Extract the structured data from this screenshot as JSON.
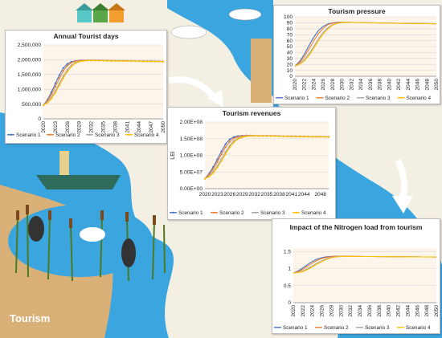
{
  "illustration": {
    "label": "Tourism",
    "colors": {
      "river": "#3ba5e0",
      "sand": "#d9b077",
      "land": "#f4efe3",
      "reed": "#4b7a22",
      "text": "#ffffff"
    }
  },
  "chart_data": [
    {
      "id": "p1",
      "type": "line",
      "title": "Annual Tourist days",
      "x": [
        2020,
        2021,
        2022,
        2023,
        2024,
        2025,
        2026,
        2027,
        2028,
        2029,
        2030,
        2031,
        2032,
        2033,
        2034,
        2035,
        2036,
        2037,
        2038,
        2039,
        2040,
        2041,
        2042,
        2043,
        2044,
        2045,
        2046,
        2047,
        2048,
        2049,
        2050
      ],
      "x_ticks": [
        "2020",
        "2023",
        "2026",
        "2029",
        "2032",
        "2035",
        "2038",
        "2041",
        "2044",
        "2047",
        "2050"
      ],
      "y_ticks": [
        "0",
        "500,000",
        "1,000,000",
        "1,500,000",
        "2,000,000",
        "2,500,000"
      ],
      "ylim": [
        0,
        2500000
      ],
      "series": [
        {
          "name": "Scenario 1",
          "color": "#4472c4",
          "marker": "circle",
          "values": [
            460000,
            640000,
            900000,
            1200000,
            1480000,
            1720000,
            1860000,
            1930000,
            1960000,
            1975000,
            1980000,
            1982000,
            1980000,
            1978000,
            1976000,
            1974000,
            1972000,
            1970000,
            1968000,
            1966000,
            1964000,
            1962000,
            1960000,
            1958000,
            1956000,
            1954000,
            1952000,
            1950000,
            1948000,
            1946000,
            1944000
          ]
        },
        {
          "name": "Scenario 2",
          "color": "#ed7d31",
          "marker": "circle",
          "values": [
            460000,
            600000,
            820000,
            1090000,
            1370000,
            1620000,
            1800000,
            1900000,
            1950000,
            1970000,
            1978000,
            1980000,
            1979000,
            1977000,
            1975000,
            1973000,
            1971000,
            1969000,
            1967000,
            1965000,
            1963000,
            1961000,
            1959000,
            1957000,
            1955000,
            1953000,
            1951000,
            1949000,
            1947000,
            1945000,
            1943000
          ]
        },
        {
          "name": "Scenario 3",
          "color": "#a5a5a5",
          "marker": "circle",
          "values": [
            460000,
            560000,
            720000,
            940000,
            1200000,
            1450000,
            1660000,
            1810000,
            1900000,
            1945000,
            1965000,
            1972000,
            1974000,
            1973000,
            1971000,
            1969000,
            1967000,
            1965000,
            1963000,
            1961000,
            1959000,
            1957000,
            1955000,
            1953000,
            1951000,
            1949000,
            1947000,
            1945000,
            1943000,
            1941000,
            1939000
          ]
        },
        {
          "name": "Scenario 4",
          "color": "#ffc000",
          "marker": "circle",
          "values": [
            460000,
            540000,
            680000,
            880000,
            1130000,
            1380000,
            1600000,
            1770000,
            1880000,
            1935000,
            1960000,
            1970000,
            1972000,
            1971000,
            1969000,
            1967000,
            1965000,
            1963000,
            1961000,
            1959000,
            1957000,
            1955000,
            1953000,
            1951000,
            1949000,
            1947000,
            1945000,
            1943000,
            1941000,
            1939000,
            1937000
          ]
        }
      ],
      "grid": true,
      "legend": "bottom"
    },
    {
      "id": "p2",
      "type": "line",
      "title": "Tourism pressure",
      "x": [
        2020,
        2021,
        2022,
        2023,
        2024,
        2025,
        2026,
        2027,
        2028,
        2029,
        2030,
        2031,
        2032,
        2033,
        2034,
        2035,
        2036,
        2037,
        2038,
        2039,
        2040,
        2041,
        2042,
        2043,
        2044,
        2045,
        2046,
        2047,
        2048,
        2049,
        2050
      ],
      "x_ticks": [
        "2020",
        "2022",
        "2024",
        "2026",
        "2028",
        "2030",
        "2032",
        "2034",
        "2036",
        "2038",
        "2040",
        "2042",
        "2044",
        "2046",
        "2048",
        "2050"
      ],
      "y_ticks": [
        "0",
        "10",
        "20",
        "30",
        "40",
        "50",
        "60",
        "70",
        "80",
        "90",
        "100"
      ],
      "ylim": [
        0,
        100
      ],
      "series": [
        {
          "name": "Scenario 1",
          "color": "#4472c4",
          "marker": "none",
          "values": [
            17,
            25,
            37,
            52,
            66,
            77,
            84,
            88,
            90,
            91,
            91,
            91,
            90.7,
            90.5,
            90.3,
            90.1,
            90,
            89.8,
            89.7,
            89.5,
            89.4,
            89.3,
            89.2,
            89.1,
            89,
            88.9,
            88.8,
            88.7,
            88.6,
            88.5,
            88.4
          ]
        },
        {
          "name": "Scenario 2",
          "color": "#ed7d31",
          "marker": "none",
          "values": [
            17,
            23,
            33,
            46,
            60,
            72,
            81,
            87,
            89.5,
            90.5,
            91,
            91,
            90.7,
            90.5,
            90.3,
            90.1,
            90,
            89.8,
            89.7,
            89.5,
            89.4,
            89.3,
            89.2,
            89.1,
            89,
            88.9,
            88.8,
            88.7,
            88.6,
            88.5,
            88.4
          ]
        },
        {
          "name": "Scenario 3",
          "color": "#a5a5a5",
          "marker": "none",
          "values": [
            17,
            21,
            28,
            38,
            50,
            63,
            74,
            82,
            87,
            89.5,
            90.5,
            90.8,
            90.7,
            90.5,
            90.3,
            90.1,
            90,
            89.8,
            89.7,
            89.5,
            89.4,
            89.3,
            89.2,
            89.1,
            89,
            88.9,
            88.8,
            88.7,
            88.6,
            88.5,
            88.4
          ]
        },
        {
          "name": "Scenario 4",
          "color": "#ffc000",
          "marker": "none",
          "values": [
            17,
            20,
            26,
            35,
            47,
            60,
            71,
            80,
            86,
            89,
            90.3,
            90.7,
            90.6,
            90.4,
            90.2,
            90,
            89.9,
            89.7,
            89.6,
            89.4,
            89.3,
            89.2,
            89.1,
            89,
            88.9,
            88.8,
            88.7,
            88.6,
            88.5,
            88.4,
            88.3
          ]
        }
      ],
      "grid": true,
      "legend": "bottom"
    },
    {
      "id": "p3",
      "type": "line",
      "title": "Tourism revenues",
      "ylabel": "LEI",
      "x": [
        2020,
        2021,
        2022,
        2023,
        2024,
        2025,
        2026,
        2027,
        2028,
        2029,
        2030,
        2031,
        2032,
        2033,
        2034,
        2035,
        2036,
        2037,
        2038,
        2039,
        2040,
        2041,
        2042,
        2043,
        2044,
        2045,
        2046,
        2047,
        2048,
        2049,
        2050
      ],
      "x_ticks": [
        "2020",
        "2023",
        "2026",
        "2029",
        "2032",
        "2035",
        "2038",
        "2041",
        "2044",
        "2048"
      ],
      "y_ticks": [
        "0.00E+00",
        "5.00E+07",
        "1.00E+08",
        "1.50E+08",
        "2.00E+08"
      ],
      "ylim": [
        0,
        200000000
      ],
      "series": [
        {
          "name": "Scenario 1",
          "color": "#4472c4",
          "marker": "circle",
          "values": [
            30000000,
            45000000,
            65000000,
            88000000,
            112000000,
            134000000,
            148000000,
            155000000,
            158000000,
            159000000,
            159500000,
            159500000,
            159300000,
            159100000,
            158900000,
            158700000,
            158500000,
            158300000,
            158100000,
            157900000,
            157700000,
            157500000,
            157300000,
            157100000,
            156900000,
            156700000,
            156500000,
            156300000,
            156100000,
            155900000,
            155700000
          ]
        },
        {
          "name": "Scenario 2",
          "color": "#ed7d31",
          "marker": "circle",
          "values": [
            30000000,
            42000000,
            59000000,
            80000000,
            103000000,
            125000000,
            141000000,
            151000000,
            156000000,
            158000000,
            159000000,
            159300000,
            159200000,
            159000000,
            158800000,
            158600000,
            158400000,
            158200000,
            158000000,
            157800000,
            157600000,
            157400000,
            157200000,
            157000000,
            156800000,
            156600000,
            156400000,
            156200000,
            156000000,
            155800000,
            155600000
          ]
        },
        {
          "name": "Scenario 3",
          "color": "#a5a5a5",
          "marker": "circle",
          "values": [
            30000000,
            38000000,
            51000000,
            68000000,
            89000000,
            110000000,
            129000000,
            143000000,
            151000000,
            155500000,
            157500000,
            158500000,
            158700000,
            158600000,
            158400000,
            158200000,
            158000000,
            157800000,
            157600000,
            157400000,
            157200000,
            157000000,
            156800000,
            156600000,
            156400000,
            156200000,
            156000000,
            155800000,
            155600000,
            155400000,
            155200000
          ]
        },
        {
          "name": "Scenario 4",
          "color": "#ffc000",
          "marker": "circle",
          "values": [
            30000000,
            36000000,
            47000000,
            63000000,
            83000000,
            104000000,
            124000000,
            139000000,
            149000000,
            154500000,
            157000000,
            158200000,
            158500000,
            158400000,
            158200000,
            158000000,
            157800000,
            157600000,
            157400000,
            157200000,
            157000000,
            156800000,
            156600000,
            156400000,
            156200000,
            156000000,
            155800000,
            155600000,
            155400000,
            155200000,
            155000000
          ]
        }
      ],
      "grid": true,
      "legend": "bottom"
    },
    {
      "id": "p4",
      "type": "line",
      "title": "Impact of the Nitrogen load from tourism",
      "x": [
        2020,
        2021,
        2022,
        2023,
        2024,
        2025,
        2026,
        2027,
        2028,
        2029,
        2030,
        2031,
        2032,
        2033,
        2034,
        2035,
        2036,
        2037,
        2038,
        2039,
        2040,
        2041,
        2042,
        2043,
        2044,
        2045,
        2046,
        2047,
        2048,
        2049,
        2050
      ],
      "x_ticks": [
        "2020",
        "2022",
        "2024",
        "2026",
        "2028",
        "2030",
        "2032",
        "2034",
        "2036",
        "2038",
        "2040",
        "2042",
        "2044",
        "2046",
        "2048",
        "2050"
      ],
      "y_ticks": [
        "0",
        "0.5",
        "1",
        "1.5"
      ],
      "ylim": [
        0,
        1.6
      ],
      "series": [
        {
          "name": "Scenario 1",
          "color": "#4472c4",
          "marker": "none",
          "values": [
            0.87,
            0.93,
            1.02,
            1.12,
            1.21,
            1.28,
            1.32,
            1.345,
            1.355,
            1.36,
            1.36,
            1.36,
            1.358,
            1.356,
            1.355,
            1.354,
            1.353,
            1.352,
            1.351,
            1.35,
            1.349,
            1.348,
            1.347,
            1.346,
            1.345,
            1.344,
            1.343,
            1.342,
            1.341,
            1.34,
            1.339
          ]
        },
        {
          "name": "Scenario 2",
          "color": "#ed7d31",
          "marker": "none",
          "values": [
            0.87,
            0.91,
            0.98,
            1.07,
            1.16,
            1.24,
            1.3,
            1.33,
            1.35,
            1.357,
            1.36,
            1.36,
            1.358,
            1.356,
            1.355,
            1.354,
            1.353,
            1.352,
            1.351,
            1.35,
            1.349,
            1.348,
            1.347,
            1.346,
            1.345,
            1.344,
            1.343,
            1.342,
            1.341,
            1.34,
            1.339
          ]
        },
        {
          "name": "Scenario 3",
          "color": "#a5a5a5",
          "marker": "none",
          "values": [
            0.87,
            0.89,
            0.93,
            1.0,
            1.08,
            1.16,
            1.23,
            1.29,
            1.325,
            1.345,
            1.355,
            1.358,
            1.357,
            1.356,
            1.355,
            1.354,
            1.353,
            1.352,
            1.351,
            1.35,
            1.349,
            1.348,
            1.347,
            1.346,
            1.345,
            1.344,
            1.343,
            1.342,
            1.341,
            1.34,
            1.339
          ]
        },
        {
          "name": "Scenario 4",
          "color": "#ffc000",
          "marker": "none",
          "values": [
            0.87,
            0.88,
            0.91,
            0.97,
            1.05,
            1.13,
            1.21,
            1.27,
            1.315,
            1.34,
            1.352,
            1.356,
            1.356,
            1.355,
            1.354,
            1.353,
            1.352,
            1.351,
            1.35,
            1.349,
            1.348,
            1.347,
            1.346,
            1.345,
            1.344,
            1.343,
            1.342,
            1.341,
            1.34,
            1.339,
            1.338
          ]
        }
      ],
      "grid": true,
      "legend": "bottom"
    }
  ]
}
